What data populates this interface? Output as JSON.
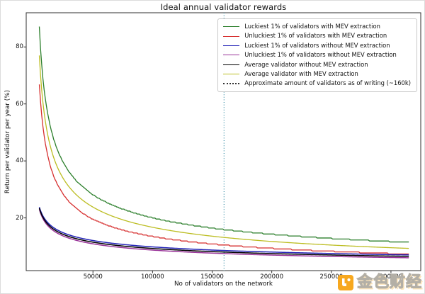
{
  "chart_data": {
    "type": "line",
    "title": "Ideal annual validator rewards",
    "xlabel": "No of validators on the network",
    "ylabel": "Return per validator per year (%)",
    "xlim": [
      -6000,
      325000
    ],
    "ylim": [
      1.5,
      92
    ],
    "xticks": [
      50000,
      100000,
      150000,
      200000,
      250000,
      300000
    ],
    "yticks": [
      20,
      40,
      60,
      80
    ],
    "grid": false,
    "legend_position": "upper right",
    "axis_color": "#2f2f2f",
    "sample_x": [
      5000,
      50000,
      100000,
      160000,
      200000,
      315000
    ],
    "series": [
      {
        "name": "Luckiest 1% of validators with MEV extraction",
        "color": "#2a7e2a",
        "stepped": true,
        "linewidth": 1.3,
        "values": [
          87.0,
          28.2,
          20.0,
          15.9,
          14.3,
          11.4
        ],
        "model": {
          "v0": 87.0,
          "p": 0.49
        }
      },
      {
        "name": "Unluckiest 1% of validators with MEV extraction",
        "color": "#d62e2e",
        "stepped": true,
        "linewidth": 1.3,
        "values": [
          67.0,
          19.5,
          13.5,
          10.5,
          9.3,
          7.3
        ],
        "model": {
          "v0": 67.0,
          "p": 0.535
        }
      },
      {
        "name": "Luckiest 1% of validators without MEV extraction",
        "color": "#2323b8",
        "stepped": false,
        "linewidth": 1.5,
        "values": [
          23.8,
          12.1,
          9.8,
          8.6,
          8.0,
          7.0
        ],
        "model": {
          "v0": 23.8,
          "p": 0.295
        }
      },
      {
        "name": "Unluckiest 1% of validators without MEV extraction",
        "color": "#993399",
        "stepped": false,
        "linewidth": 1.5,
        "values": [
          23.0,
          10.9,
          8.7,
          7.5,
          7.0,
          6.0
        ],
        "model": {
          "v0": 23.0,
          "p": 0.324
        }
      },
      {
        "name": "Average validator without MEV extraction",
        "color": "#000000",
        "stepped": false,
        "linewidth": 1.5,
        "values": [
          23.4,
          11.5,
          9.3,
          8.0,
          7.5,
          6.5
        ],
        "model": {
          "v0": 23.4,
          "p": 0.309
        }
      },
      {
        "name": "Average validator with MEV extraction",
        "color": "#bcbd22",
        "stepped": false,
        "linewidth": 1.3,
        "values": [
          77.0,
          23.8,
          16.7,
          13.1,
          11.7,
          9.3
        ],
        "model": {
          "v0": 77.0,
          "p": 0.51
        }
      }
    ],
    "model_info": {
      "n0": 5000,
      "n_start": 5000,
      "n_end": 315000,
      "n_step": 1000,
      "step_quantum": 0.35
    },
    "vline": {
      "label": "Approximate amount of validators as of writing (~160k)",
      "x": 160000,
      "color": "#4596ab",
      "style": "dotted",
      "legend_swatch_color": "#333333"
    }
  },
  "watermark": {
    "text": "金色财经",
    "accent_color": "#f7a81f"
  }
}
